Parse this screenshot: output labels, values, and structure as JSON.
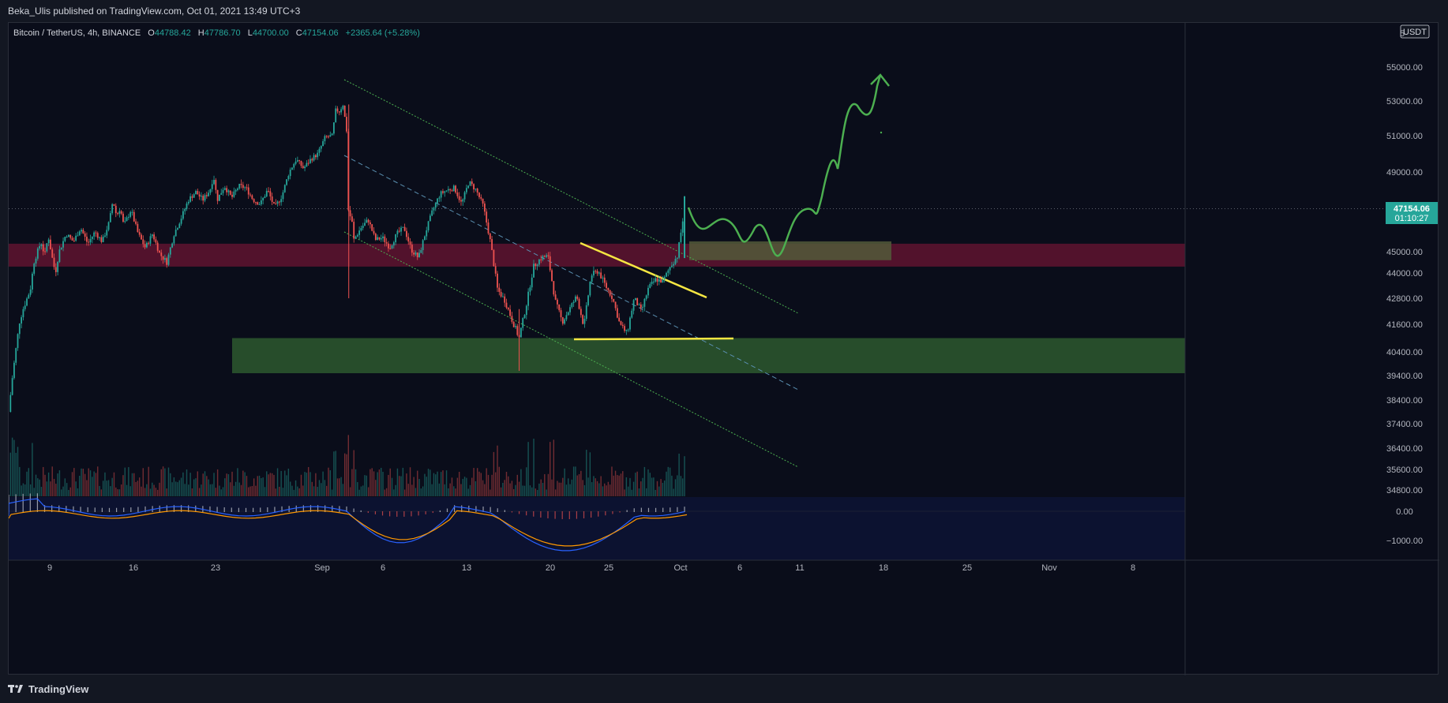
{
  "header": {
    "publisher": "Beka_Ulis published on TradingView.com, Oct 01, 2021 13:49 UTC+3"
  },
  "footer": {
    "brand": "TradingView",
    "logo_icon": "tradingview-logo-icon"
  },
  "colors": {
    "background": "#0a0d1a",
    "up": "#26a69a",
    "down": "#ef5350",
    "resistance_zone": "#6b1433",
    "support_zone": "#2e5e2f",
    "target_zone": "#525a3a",
    "triangle": "#f5e642",
    "channel": "#4caf50",
    "projection": "#4caf50",
    "macd": "#2962ff",
    "signal": "#ff9800",
    "price_label_bg": "#26a69a"
  },
  "chart_data": {
    "type": "candlestick",
    "symbol": "Bitcoin / TetherUS, 4h, BINANCE",
    "ohlc": {
      "open_label": "O",
      "open": "44788.42",
      "high_label": "H",
      "high": "47786.70",
      "low_label": "L",
      "low": "44700.00",
      "close_label": "C",
      "close": "47154.06",
      "change": "+2365.64 (+5.28%)"
    },
    "currency": "USDT",
    "last_price": "47154.06",
    "countdown": "01:10:27",
    "y_ticks": [
      "55000.00",
      "53000.00",
      "51000.00",
      "49000.00",
      "45000.00",
      "44000.00",
      "42800.00",
      "41600.00",
      "40400.00",
      "39400.00",
      "38400.00",
      "37400.00",
      "36400.00",
      "35600.00",
      "34800.00"
    ],
    "y_top_partial": "5",
    "x_ticks": [
      "9",
      "16",
      "23",
      "Sep",
      "6",
      "13",
      "20",
      "25",
      "Oct",
      "6",
      "11",
      "18",
      "25",
      "Nov",
      "8"
    ],
    "macd_ticks": [
      "0.00",
      "−1000.00"
    ],
    "price_path": [
      [
        0,
        37900
      ],
      [
        0.5,
        39300
      ],
      [
        1,
        40500
      ],
      [
        1.5,
        41700
      ],
      [
        2,
        42300
      ],
      [
        3,
        43200
      ],
      [
        3.5,
        44500
      ],
      [
        4.5,
        45500
      ],
      [
        5,
        44800
      ],
      [
        5.5,
        45800
      ],
      [
        6,
        44800
      ],
      [
        6.5,
        44000
      ],
      [
        7,
        45000
      ],
      [
        8,
        45900
      ],
      [
        9,
        45500
      ],
      [
        10,
        46200
      ],
      [
        11,
        45400
      ],
      [
        12,
        46000
      ],
      [
        13,
        45500
      ],
      [
        14,
        46500
      ],
      [
        14.5,
        47600
      ],
      [
        15,
        46800
      ],
      [
        15.5,
        47200
      ],
      [
        16,
        46300
      ],
      [
        17,
        47100
      ],
      [
        18,
        45900
      ],
      [
        19,
        45200
      ],
      [
        20,
        45900
      ],
      [
        21,
        44900
      ],
      [
        22,
        44500
      ],
      [
        23,
        45900
      ],
      [
        24,
        46700
      ],
      [
        25,
        47600
      ],
      [
        26,
        48000
      ],
      [
        27,
        47600
      ],
      [
        28,
        48100
      ],
      [
        28.5,
        48800
      ],
      [
        29,
        47600
      ],
      [
        30,
        48300
      ],
      [
        31,
        47700
      ],
      [
        32,
        48300
      ],
      [
        33,
        48200
      ],
      [
        34,
        47600
      ],
      [
        35,
        47400
      ],
      [
        36,
        48100
      ],
      [
        37,
        47200
      ],
      [
        38,
        47800
      ],
      [
        39,
        49000
      ],
      [
        40,
        49700
      ],
      [
        41,
        49200
      ],
      [
        42,
        49700
      ],
      [
        43,
        50000
      ],
      [
        44,
        50900
      ],
      [
        45,
        51000
      ],
      [
        45.5,
        52500
      ],
      [
        46,
        52400
      ],
      [
        46.5,
        52800
      ],
      [
        47,
        51300
      ],
      [
        47.3,
        46300
      ],
      [
        47.6,
        47000
      ],
      [
        48,
        45600
      ],
      [
        49,
        46200
      ],
      [
        50,
        46600
      ],
      [
        51,
        45600
      ],
      [
        52,
        45700
      ],
      [
        53,
        45200
      ],
      [
        54,
        45900
      ],
      [
        55,
        46200
      ],
      [
        56,
        45100
      ],
      [
        57,
        44700
      ],
      [
        58,
        46000
      ],
      [
        59,
        47100
      ],
      [
        60,
        47900
      ],
      [
        61,
        48100
      ],
      [
        62,
        48200
      ],
      [
        63,
        47400
      ],
      [
        64,
        48500
      ],
      [
        65,
        48100
      ],
      [
        66,
        47300
      ],
      [
        67,
        45500
      ],
      [
        68,
        43200
      ],
      [
        69,
        42700
      ],
      [
        70,
        41800
      ],
      [
        71,
        41000
      ],
      [
        72,
        42500
      ],
      [
        73,
        44300
      ],
      [
        74,
        44700
      ],
      [
        75,
        44800
      ],
      [
        76,
        42700
      ],
      [
        77,
        41700
      ],
      [
        78,
        42300
      ],
      [
        79,
        42900
      ],
      [
        80,
        41500
      ],
      [
        81,
        43900
      ],
      [
        82,
        44100
      ],
      [
        83,
        43400
      ],
      [
        84,
        42800
      ],
      [
        85,
        41600
      ],
      [
        86,
        41200
      ],
      [
        87,
        42800
      ],
      [
        88,
        42200
      ],
      [
        89,
        43300
      ],
      [
        90,
        43700
      ],
      [
        91,
        43600
      ],
      [
        92,
        44300
      ],
      [
        93,
        44800
      ],
      [
        94,
        47150
      ]
    ],
    "annotations": {
      "resistance_zone": [
        44300,
        45400
      ],
      "support_zone": [
        39500,
        41000
      ],
      "target_zone": [
        44600,
        45400
      ],
      "channel_upper": [
        [
          "Sep 3",
          52900
        ],
        [
          "Oct 12",
          42300
        ]
      ],
      "channel_lower": [
        [
          "Sep 3",
          45700
        ],
        [
          "Oct 12",
          35500
        ]
      ],
      "triangle_top": [
        [
          44800
        ],
        [
          42700
        ]
      ],
      "triangle_base": 41000,
      "projection_target": 54400
    }
  }
}
